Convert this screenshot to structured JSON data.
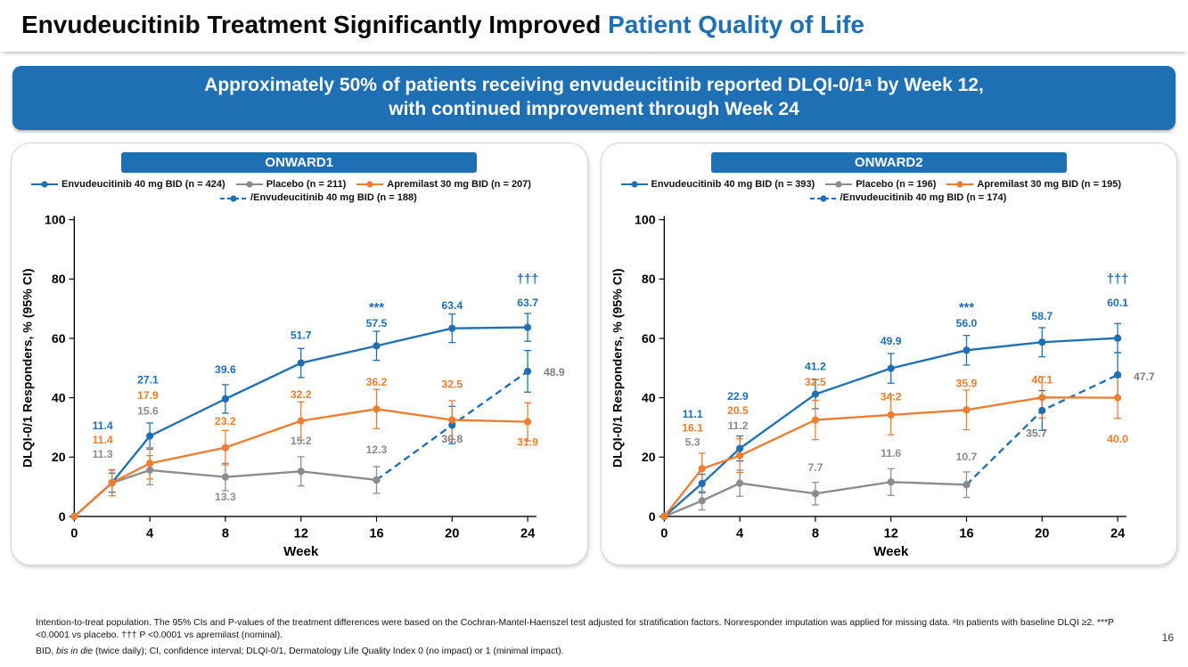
{
  "slide": {
    "title": {
      "black": "Envudeucitinib Treatment Significantly Improved ",
      "blue": "Patient Quality of Life"
    },
    "banner": {
      "line1": "Approximately 50% of patients receiving envudeucitinib reported DLQI-0/1ᵃ by Week 12,",
      "line2": "with continued improvement through Week 24"
    },
    "footnotes": {
      "para1": "Intention-to-treat population. The 95% CIs and P-values of the treatment differences were based on the Cochran-Mantel-Haenszel test adjusted for stratification factors. Nonresponder imputation was applied for missing data. ᵃIn patients with baseline DLQI ≥2. ***P <0.0001 vs placebo. ††† P <0.0001 vs apremilast (nominal).",
      "para2_pre": "BID, ",
      "para2_italic": "bis in die",
      "para2_post": " (twice daily); CI, confidence interval; DLQI-0/1, Dermatology Life Quality Index 0 (no impact) or 1 (minimal impact)."
    },
    "page_number": "16"
  },
  "colors": {
    "accent_blue": "#1F6FB5",
    "apremilast_orange": "#ED7D31",
    "placebo_gray": "#8C8C8C",
    "crossover_label_gray": "#7F7F7F"
  },
  "chart_data": [
    {
      "type": "line",
      "title": "ONWARD1",
      "xlabel": "Week",
      "ylabel": "DLQI-0/1 Responders, % (95% CI)",
      "xlim": [
        0,
        24
      ],
      "ylim": [
        0,
        100
      ],
      "xticks": [
        0,
        4,
        8,
        12,
        16,
        20,
        24
      ],
      "yticks": [
        0,
        20,
        40,
        60,
        80,
        100
      ],
      "grid": false,
      "legend_position": "top",
      "series": [
        {
          "name": "Envudeucitinib 40 mg BID (n = 424)",
          "color": "#1F6FB5",
          "dash": "solid",
          "legend_row": 1,
          "x": [
            0,
            2,
            4,
            8,
            12,
            16,
            20,
            24
          ],
          "y": [
            0,
            11.4,
            27.1,
            39.6,
            51.7,
            57.5,
            63.4,
            63.7
          ],
          "err": [
            0,
            3.2,
            4.4,
            4.8,
            4.9,
            4.9,
            4.8,
            4.7
          ],
          "labels": [
            {
              "text": "11.4",
              "x": 1.5,
              "y": 30.5
            },
            {
              "text": "27.1",
              "x": 3.9,
              "y": 46
            },
            {
              "text": "39.6",
              "x": 8,
              "y": 49.5
            },
            {
              "text": "51.7",
              "x": 12,
              "y": 61
            },
            {
              "text": "57.5",
              "x": 16,
              "y": 65
            },
            {
              "text": "63.4",
              "x": 20,
              "y": 71
            },
            {
              "text": "63.7",
              "x": 24,
              "y": 72
            }
          ]
        },
        {
          "name": "/Envudeucitinib 40 mg BID (n = 188)",
          "color": "#1F6FB5",
          "dash": "dashed",
          "legend_row": 2,
          "label_color": "#7F7F7F",
          "x": [
            16,
            20,
            24
          ],
          "y": [
            12.3,
            30.8,
            48.9
          ],
          "err": [
            0,
            6.3,
            7.0
          ],
          "labels": [
            {
              "text": "30.8",
              "x": 20,
              "y": 26
            },
            {
              "text": "48.9",
              "x": 25.4,
              "y": 48.5
            }
          ]
        },
        {
          "name": "Placebo (n = 211)",
          "color": "#8C8C8C",
          "dash": "solid",
          "legend_row": 1,
          "x": [
            0,
            2,
            4,
            8,
            12,
            16
          ],
          "y": [
            0,
            11.3,
            15.6,
            13.3,
            15.2,
            12.3
          ],
          "err": [
            0,
            4.3,
            4.9,
            4.6,
            4.9,
            4.5
          ],
          "labels": [
            {
              "text": "11.3",
              "x": 1.5,
              "y": 21
            },
            {
              "text": "15.6",
              "x": 3.9,
              "y": 35.5
            },
            {
              "text": "13.3",
              "x": 8,
              "y": 6.5
            },
            {
              "text": "15.2",
              "x": 12,
              "y": 25.5
            },
            {
              "text": "12.3",
              "x": 16,
              "y": 22.5
            }
          ]
        },
        {
          "name": "Apremilast 30 mg BID (n = 207)",
          "color": "#ED7D31",
          "dash": "solid",
          "legend_row": 1,
          "x": [
            0,
            2,
            4,
            8,
            12,
            16,
            20,
            24
          ],
          "y": [
            0,
            11.4,
            17.9,
            23.2,
            32.2,
            36.2,
            32.5,
            31.9
          ],
          "err": [
            0,
            4.4,
            5.3,
            5.8,
            6.4,
            6.6,
            6.5,
            6.4
          ],
          "labels": [
            {
              "text": "11.4",
              "x": 1.5,
              "y": 25.8
            },
            {
              "text": "17.9",
              "x": 3.9,
              "y": 40.8
            },
            {
              "text": "23.2",
              "x": 8,
              "y": 32
            },
            {
              "text": "32.2",
              "x": 12,
              "y": 41
            },
            {
              "text": "36.2",
              "x": 16,
              "y": 45.2
            },
            {
              "text": "32.5",
              "x": 20,
              "y": 44.5
            },
            {
              "text": "31.9",
              "x": 24,
              "y": 25
            }
          ]
        }
      ],
      "annotations": [
        {
          "text": "***",
          "x": 16,
          "y": 70.5,
          "color": "#1F6FB5"
        },
        {
          "text": "†††",
          "x": 24,
          "y": 80,
          "color": "#1F6FB5"
        }
      ]
    },
    {
      "type": "line",
      "title": "ONWARD2",
      "xlabel": "Week",
      "ylabel": "DLQI-0/1 Responders, % (95% CI)",
      "xlim": [
        0,
        24
      ],
      "ylim": [
        0,
        100
      ],
      "xticks": [
        0,
        4,
        8,
        12,
        16,
        20,
        24
      ],
      "yticks": [
        0,
        20,
        40,
        60,
        80,
        100
      ],
      "grid": false,
      "legend_position": "top",
      "series": [
        {
          "name": "Envudeucitinib 40 mg BID (n = 393)",
          "color": "#1F6FB5",
          "dash": "solid",
          "legend_row": 1,
          "x": [
            0,
            2,
            4,
            8,
            12,
            16,
            20,
            24
          ],
          "y": [
            0,
            11.1,
            22.9,
            41.2,
            49.9,
            56.0,
            58.7,
            60.1
          ],
          "err": [
            0,
            3.1,
            4.2,
            4.9,
            5.0,
            5.0,
            4.9,
            4.9
          ],
          "labels": [
            {
              "text": "11.1",
              "x": 1.5,
              "y": 34.5
            },
            {
              "text": "22.9",
              "x": 3.9,
              "y": 40.5
            },
            {
              "text": "41.2",
              "x": 8,
              "y": 50.5
            },
            {
              "text": "49.9",
              "x": 12,
              "y": 59
            },
            {
              "text": "56.0",
              "x": 16,
              "y": 65
            },
            {
              "text": "58.7",
              "x": 20,
              "y": 67.5
            },
            {
              "text": "60.1",
              "x": 24,
              "y": 72
            }
          ]
        },
        {
          "name": "/Envudeucitinib 40 mg BID (n = 174)",
          "color": "#1F6FB5",
          "dash": "dashed",
          "legend_row": 2,
          "label_color": "#7F7F7F",
          "x": [
            16,
            20,
            24
          ],
          "y": [
            10.7,
            35.7,
            47.7
          ],
          "err": [
            0,
            6.7,
            7.5
          ],
          "labels": [
            {
              "text": "35.7",
              "x": 19.7,
              "y": 28
            },
            {
              "text": "47.7",
              "x": 25.4,
              "y": 47
            }
          ]
        },
        {
          "name": "Placebo (n = 196)",
          "color": "#8C8C8C",
          "dash": "solid",
          "legend_row": 1,
          "x": [
            0,
            2,
            4,
            8,
            12,
            16
          ],
          "y": [
            0,
            5.3,
            11.2,
            7.7,
            11.6,
            10.7
          ],
          "err": [
            0,
            3.1,
            4.4,
            3.8,
            4.5,
            4.3
          ],
          "labels": [
            {
              "text": "5.3",
              "x": 1.5,
              "y": 25
            },
            {
              "text": "11.2",
              "x": 3.9,
              "y": 30.6
            },
            {
              "text": "7.7",
              "x": 8,
              "y": 16.5
            },
            {
              "text": "11.6",
              "x": 12,
              "y": 21.3
            },
            {
              "text": "10.7",
              "x": 16,
              "y": 20
            }
          ]
        },
        {
          "name": "Apremilast 30 mg BID (n = 195)",
          "color": "#ED7D31",
          "dash": "solid",
          "legend_row": 1,
          "x": [
            0,
            2,
            4,
            8,
            12,
            16,
            20,
            24
          ],
          "y": [
            0,
            16.1,
            20.5,
            32.5,
            34.2,
            35.9,
            40.1,
            40.0
          ],
          "err": [
            0,
            5.2,
            5.7,
            6.6,
            6.7,
            6.7,
            6.9,
            6.9
          ],
          "labels": [
            {
              "text": "16.1",
              "x": 1.5,
              "y": 29.8
            },
            {
              "text": "20.5",
              "x": 3.9,
              "y": 35.6
            },
            {
              "text": "32.5",
              "x": 8,
              "y": 45.3
            },
            {
              "text": "34.2",
              "x": 12,
              "y": 40.3
            },
            {
              "text": "35.9",
              "x": 16,
              "y": 44.8
            },
            {
              "text": "40.1",
              "x": 20,
              "y": 46
            },
            {
              "text": "40.0",
              "x": 24,
              "y": 26
            }
          ]
        }
      ],
      "annotations": [
        {
          "text": "***",
          "x": 16,
          "y": 70.5,
          "color": "#1F6FB5"
        },
        {
          "text": "†††",
          "x": 24,
          "y": 80,
          "color": "#1F6FB5"
        }
      ]
    }
  ]
}
